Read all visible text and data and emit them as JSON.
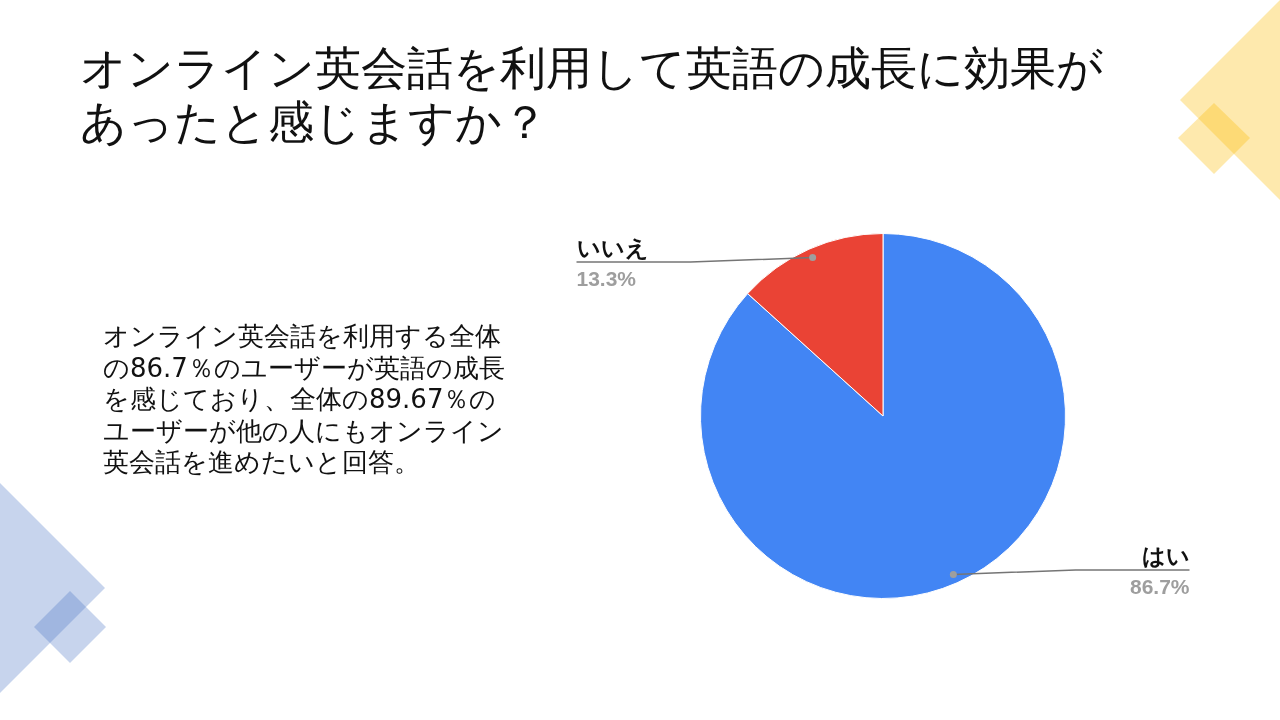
{
  "chart_data": {
    "type": "pie",
    "title": "オンライン英会話を利用して英語の成長に効果があったと感じますか？",
    "categories": [
      "はい",
      "いいえ"
    ],
    "values": [
      86.7,
      13.3
    ],
    "colors": [
      "#4285f4",
      "#ea4335"
    ],
    "value_labels": [
      "86.7%",
      "13.3%"
    ],
    "annotations": [
      "オンライン英会話を利用する全体の86.7％のユーザーが英語の成長を感じており、全体の89.67％のユーザーが他の人にもオンライン英会話を進めたいと回答。"
    ]
  }
}
